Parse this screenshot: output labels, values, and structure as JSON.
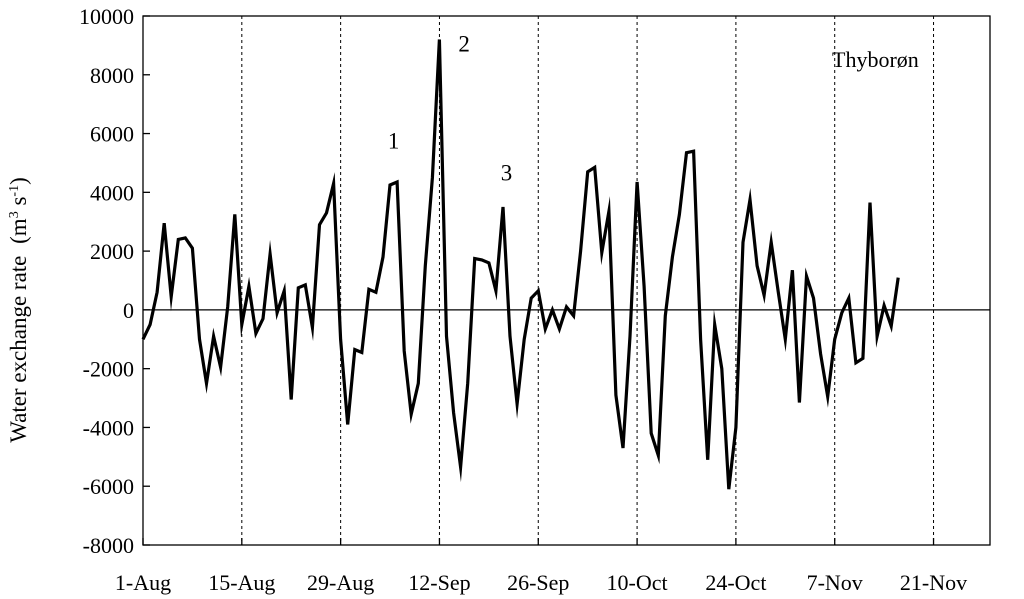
{
  "chart_data": {
    "type": "line",
    "ylabel": "Water exchange rate",
    "ylabel_unit_base": "(m",
    "ylabel_unit_sup1": "3",
    "ylabel_unit_mid": " s",
    "ylabel_unit_sup2": "-1",
    "ylabel_unit_end": ")",
    "station_label": "Thyborøn",
    "ylim": [
      -8000,
      10000
    ],
    "yticks": [
      10000,
      8000,
      6000,
      4000,
      2000,
      0,
      -2000,
      -4000,
      -6000,
      -8000
    ],
    "ytick_labels": [
      "10000",
      "8000",
      "6000",
      "4000",
      "2000",
      "0",
      "-2000",
      "-4000",
      "-6000",
      "-8000"
    ],
    "xlim": [
      0,
      120
    ],
    "xticks": [
      0,
      14,
      28,
      42,
      56,
      70,
      84,
      98,
      112
    ],
    "xtick_labels": [
      "1-Aug",
      "15-Aug",
      "29-Aug",
      "12-Sep",
      "26-Sep",
      "10-Oct",
      "24-Oct",
      "7-Nov",
      "21-Nov"
    ],
    "grid": "vertical dashed",
    "series": [
      {
        "color": "#000000",
        "x": [
          0,
          1,
          2,
          3,
          4,
          5,
          6,
          7,
          8,
          9,
          10,
          11,
          12,
          13,
          14,
          15,
          16,
          17,
          18,
          19,
          20,
          21,
          22,
          23,
          24,
          25,
          26,
          27,
          28,
          29,
          30,
          31,
          32,
          33,
          34,
          35,
          36,
          37,
          38,
          39,
          40,
          41,
          42,
          43,
          44,
          45,
          46,
          47,
          48,
          49,
          50,
          51,
          52,
          53,
          54,
          55,
          56,
          57,
          58,
          59,
          60,
          61,
          62,
          63,
          64,
          65,
          66,
          67,
          68,
          69,
          70,
          71,
          72,
          73,
          74,
          75,
          76,
          77,
          78,
          79,
          80,
          81,
          82,
          83,
          84,
          85,
          86,
          87,
          88,
          89,
          90,
          91,
          92,
          93,
          94,
          95,
          96,
          97,
          98,
          99,
          100,
          101,
          102,
          103,
          104,
          105,
          106,
          107
        ],
        "y": [
          -1000,
          -500,
          600,
          2950,
          450,
          2400,
          2450,
          2100,
          -1000,
          -2500,
          -900,
          -1950,
          100,
          3250,
          -500,
          800,
          -800,
          -300,
          1900,
          -100,
          650,
          -3050,
          750,
          850,
          -600,
          2900,
          3300,
          4300,
          -1000,
          -3900,
          -1350,
          -1450,
          700,
          600,
          1800,
          4250,
          4350,
          -1400,
          -3550,
          -2500,
          1500,
          4500,
          9200,
          -900,
          -3500,
          -5350,
          -2500,
          1750,
          1700,
          1600,
          650,
          3500,
          -900,
          -3200,
          -1000,
          400,
          650,
          -650,
          0,
          -650,
          100,
          -200,
          2000,
          4700,
          4850,
          1950,
          3350,
          -2900,
          -4700,
          -900,
          4350,
          800,
          -4200,
          -4950,
          -200,
          1800,
          3250,
          5350,
          5400,
          -1000,
          -5100,
          -500,
          -2000,
          -6100,
          -4000,
          2300,
          3750,
          1500,
          500,
          2300,
          600,
          -1000,
          1350,
          -3150,
          1150,
          400,
          -1500,
          -2950,
          -1000,
          -100,
          400,
          -1800,
          -1650,
          3650,
          -900,
          150,
          -550,
          1100
        ]
      }
    ],
    "annotations": [
      {
        "text": "1",
        "x": 35.5,
        "y": 5500
      },
      {
        "text": "2",
        "x": 45.5,
        "y": 8800
      },
      {
        "text": "3",
        "x": 51.5,
        "y": 4400
      }
    ]
  }
}
